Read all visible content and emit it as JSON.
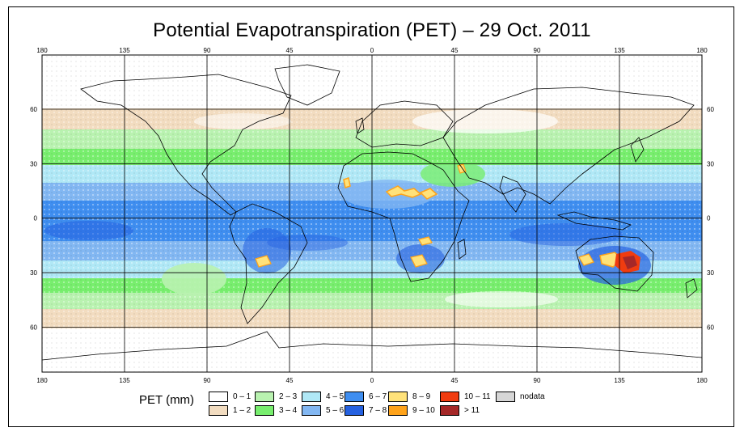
{
  "title": "Potential Evapotranspiration (PET) – 29 Oct. 2011",
  "axes": {
    "x_ticks": [
      "180",
      "135",
      "90",
      "45",
      "0",
      "45",
      "90",
      "135",
      "180"
    ],
    "y_ticks": [
      "60",
      "30",
      "0",
      "30",
      "60"
    ]
  },
  "legend": {
    "title": "PET (mm)",
    "items": [
      {
        "label": "0 – 1",
        "color": "#ffffff"
      },
      {
        "label": "1 – 2",
        "color": "#f2dcc0"
      },
      {
        "label": "2 – 3",
        "color": "#b9f2b0"
      },
      {
        "label": "3 – 4",
        "color": "#78ee6e"
      },
      {
        "label": "4 – 5",
        "color": "#b0e8f6"
      },
      {
        "label": "5 – 6",
        "color": "#82b7f2"
      },
      {
        "label": "6 – 7",
        "color": "#3f8ef0"
      },
      {
        "label": "7 – 8",
        "color": "#2561e0"
      },
      {
        "label": "8 – 9",
        "color": "#ffe27a"
      },
      {
        "label": "9 – 10",
        "color": "#ffa31a"
      },
      {
        "label": "10 – 11",
        "color": "#f03c10"
      },
      {
        "label": "> 11",
        "color": "#a52828"
      },
      {
        "label": "nodata",
        "color": "#d6d6d6"
      }
    ]
  }
}
